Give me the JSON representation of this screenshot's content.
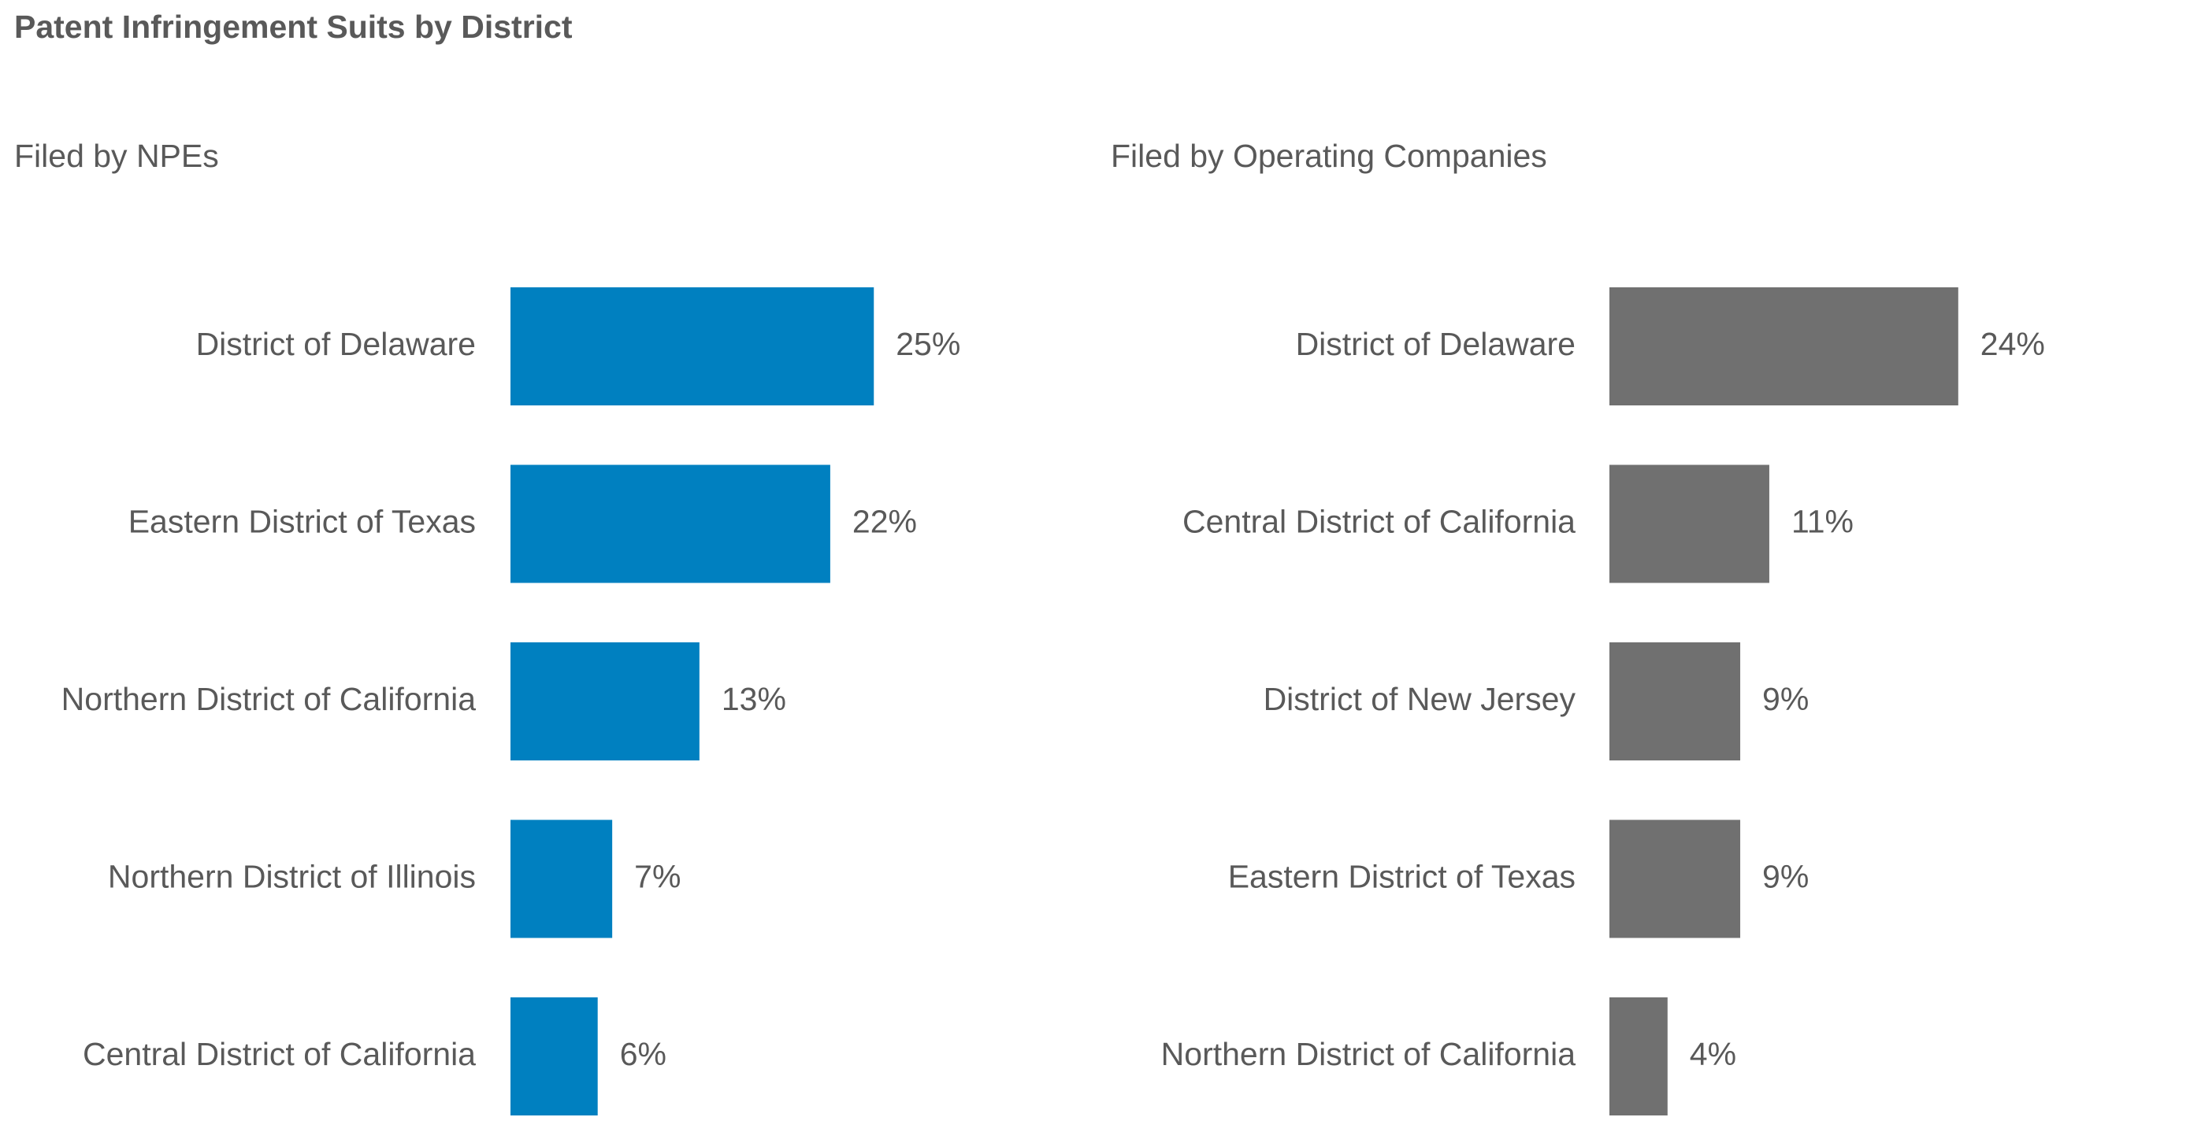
{
  "title": "Patent Infringement Suits by District",
  "colors": {
    "npe": "#0080C0",
    "operating": "#707070",
    "text": "#595959"
  },
  "chart_data": [
    {
      "type": "bar",
      "orientation": "horizontal",
      "title": "Filed by NPEs",
      "categories": [
        "District of Delaware",
        "Eastern District of Texas",
        "Northern District of California",
        "Northern District of Illinois",
        "Central District of California"
      ],
      "values": [
        25,
        22,
        13,
        7,
        6
      ],
      "value_labels": [
        "25%",
        "22%",
        "13%",
        "7%",
        "6%"
      ],
      "unit": "%",
      "grid": false,
      "legend": "none"
    },
    {
      "type": "bar",
      "orientation": "horizontal",
      "title": "Filed by Operating Companies",
      "categories": [
        "District of Delaware",
        "Central District of California",
        "District of New Jersey",
        "Eastern District of Texas",
        "Northern District of California"
      ],
      "values": [
        24,
        11,
        9,
        9,
        4
      ],
      "value_labels": [
        "24%",
        "11%",
        "9%",
        "9%",
        "4%"
      ],
      "unit": "%",
      "grid": false,
      "legend": "none"
    }
  ]
}
